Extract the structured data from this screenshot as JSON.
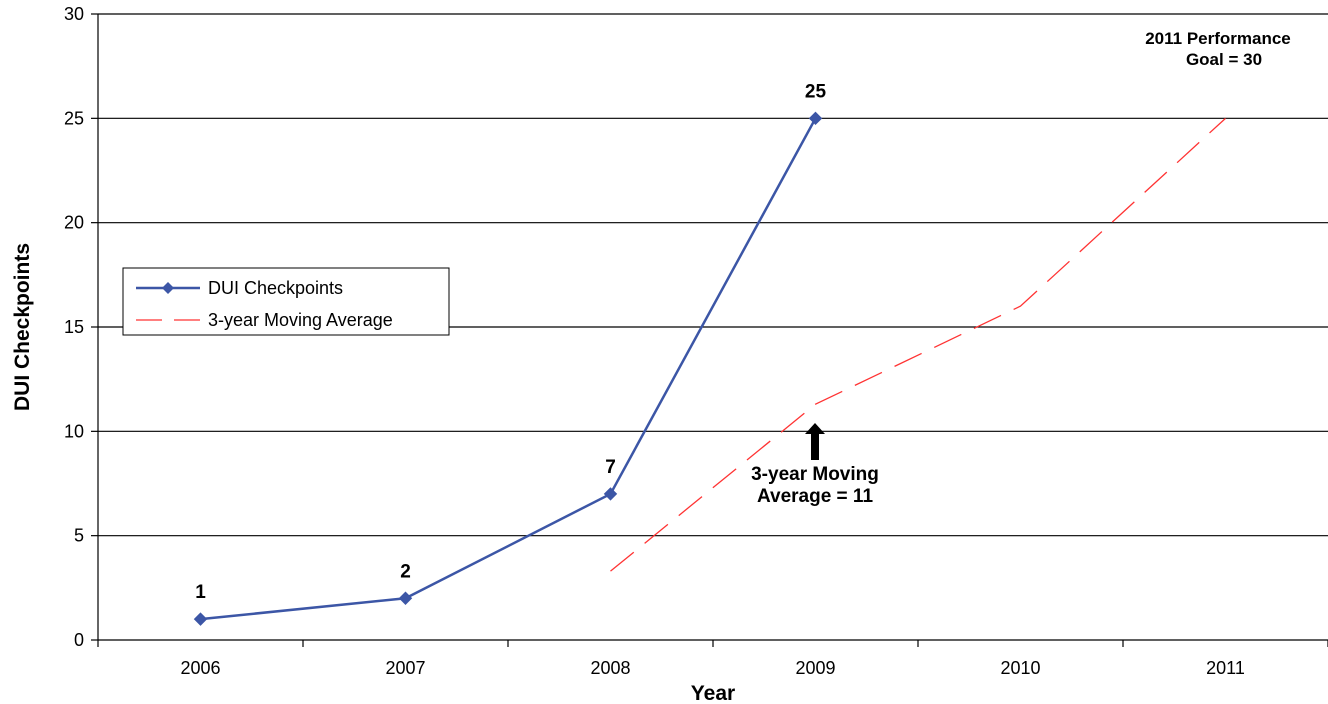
{
  "chart_data": {
    "type": "line",
    "title": "",
    "xlabel": "Year",
    "ylabel": "DUI Checkpoints",
    "categories": [
      "2006",
      "2007",
      "2008",
      "2009",
      "2010",
      "2011"
    ],
    "ylim": [
      0,
      30
    ],
    "yticks": [
      0,
      5,
      10,
      15,
      20,
      25,
      30
    ],
    "grid": "horizontal",
    "legend_position": "left",
    "series": [
      {
        "name": "DUI Checkpoints",
        "style": "solid-diamond",
        "color": "#3c56a6",
        "points": [
          {
            "x": "2006",
            "y": 1
          },
          {
            "x": "2007",
            "y": 2
          },
          {
            "x": "2008",
            "y": 7
          },
          {
            "x": "2009",
            "y": 25
          }
        ],
        "data_labels": [
          "1",
          "2",
          "7",
          "25"
        ]
      },
      {
        "name": "3-year Moving Average",
        "style": "dashed",
        "color": "#ff3333",
        "points": [
          {
            "x": "2008",
            "y": 3.3
          },
          {
            "x": "2009",
            "y": 11.3
          },
          {
            "x": "2010",
            "y": 16
          },
          {
            "x": "2011",
            "y": 25
          }
        ]
      }
    ],
    "annotations": {
      "goal": {
        "line1": "2011 Performance",
        "line2": "Goal = 30"
      },
      "moving_avg": {
        "line1": "3-year Moving",
        "line2": "Average = 11"
      }
    }
  }
}
